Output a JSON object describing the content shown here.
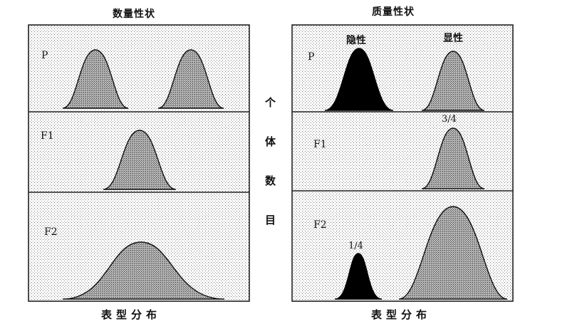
{
  "panels": {
    "left": {
      "title": "数量性状",
      "xlabel": "表型分布",
      "rows": [
        {
          "generation": "P"
        },
        {
          "generation": "F1"
        },
        {
          "generation": "F2"
        }
      ]
    },
    "right": {
      "title": "质量性状",
      "xlabel": "表型分布",
      "rows": [
        {
          "generation": "P",
          "labels": [
            "隐性",
            "显性"
          ]
        },
        {
          "generation": "F1",
          "labels": [
            "3/4"
          ]
        },
        {
          "generation": "F2",
          "labels": [
            "1/4"
          ]
        }
      ]
    }
  },
  "ylabel_chars": [
    "个",
    "体",
    "数",
    "目"
  ],
  "colors": {
    "stipple": "#7a7a7a",
    "solid": "#000000",
    "frame": "#222222"
  }
}
